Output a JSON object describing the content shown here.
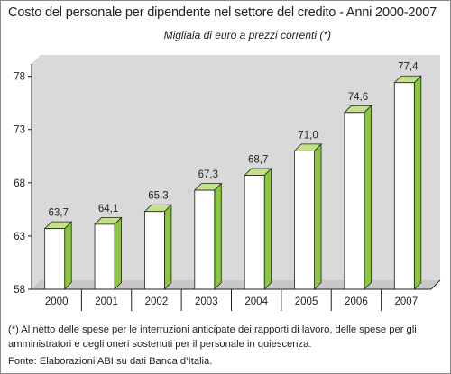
{
  "title": "Costo del personale per dipendente nel settore del credito - Anni 2000-2007",
  "subtitle": "Migliaia di euro a prezzi correnti (*)",
  "footnote": "(*) Al netto delle spese per le interruzioni anticipate dei rapporti di lavoro, delle spese per gli amministratori e degli oneri sostenuti per il personale in quiescenza.",
  "source": "Fonte: Elaborazioni ABI su dati Banca d’Italia.",
  "colors": {
    "bar_front": "#ffffff",
    "bar_side": "#8cc63f",
    "bar_top": "#c3e18a",
    "wall": "#d9d9d9",
    "floor": "#c8c8c8",
    "outline": "#222222"
  },
  "chart_data": {
    "type": "bar",
    "categories": [
      "2000",
      "2001",
      "2002",
      "2003",
      "2004",
      "2005",
      "2006",
      "2007"
    ],
    "values": [
      63.7,
      64.1,
      65.3,
      67.3,
      68.7,
      71.0,
      74.6,
      77.4
    ],
    "value_labels": [
      "63,7",
      "64,1",
      "65,3",
      "67,3",
      "68,7",
      "71,0",
      "74,6",
      "77,4"
    ],
    "yticks": [
      58,
      63,
      68,
      73,
      78
    ],
    "ytick_labels": [
      "58",
      "63",
      "68",
      "73",
      "78"
    ],
    "ylim": [
      58,
      80
    ],
    "grid": false,
    "legend": "none",
    "style": "3d-bars"
  }
}
